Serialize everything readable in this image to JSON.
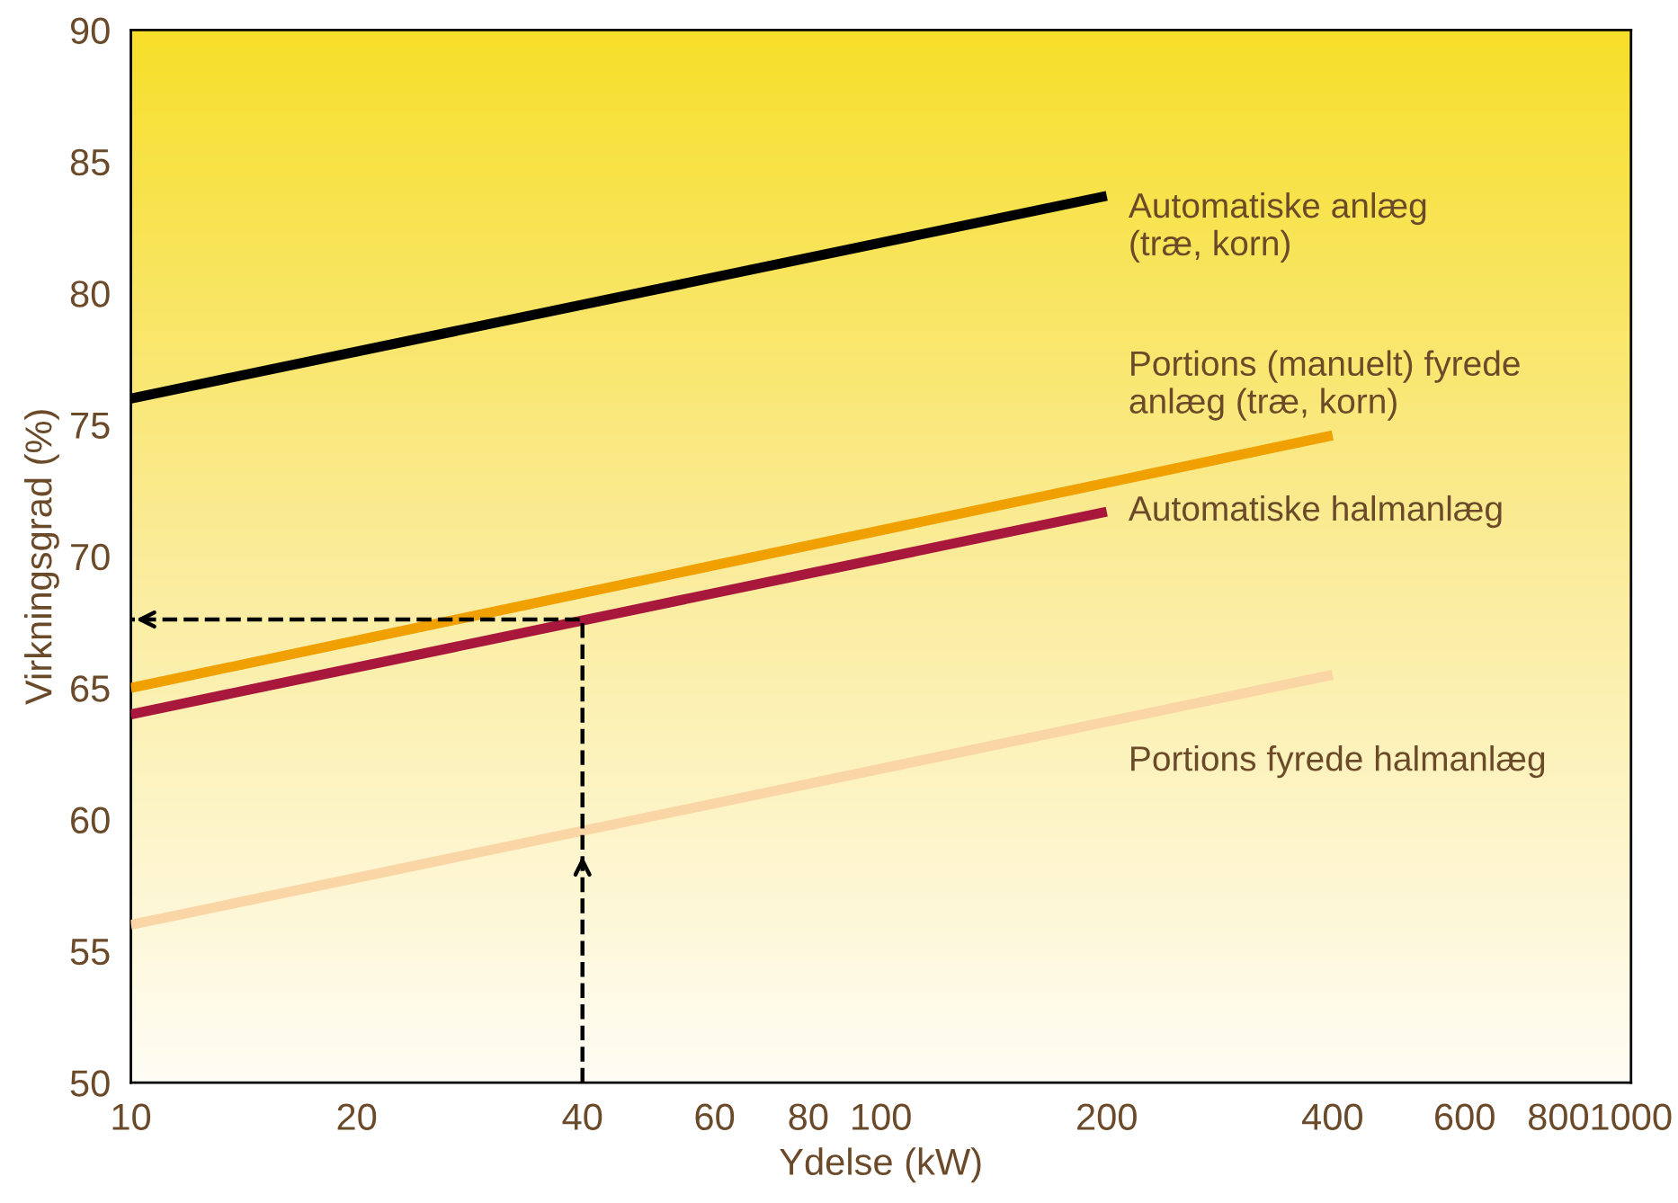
{
  "chart_data": {
    "type": "line",
    "xlabel": "Ydelse (kW)",
    "ylabel": "Virkningsgrad (%)",
    "log": "x",
    "xlim": [
      10,
      1000
    ],
    "xticks": [
      10,
      20,
      40,
      60,
      80,
      100,
      200,
      400,
      600,
      800,
      1000
    ],
    "ylim": [
      50,
      90
    ],
    "yticks": [
      50,
      55,
      60,
      65,
      70,
      75,
      80,
      85,
      90
    ],
    "grid": false,
    "line_style": "solid",
    "marker": "none",
    "series": [
      {
        "name": "Automatiske anlæg\n(træ, korn)",
        "color": "#000000",
        "x": [
          10,
          200
        ],
        "values": [
          76,
          83.7
        ]
      },
      {
        "name": "Portions (manuelt) fyrede\nanlæg (træ, korn)",
        "color": "#f0a000",
        "x": [
          10,
          400
        ],
        "values": [
          65,
          74.6
        ]
      },
      {
        "name": "Automatiske halmanlæg",
        "color": "#a8173c",
        "x": [
          10,
          200
        ],
        "values": [
          64,
          71.7
        ]
      },
      {
        "name": "Portions fyrede halmanlæg",
        "color": "#fad5a5",
        "x": [
          10,
          400
        ],
        "values": [
          56,
          65.5
        ]
      },
      {
        "color": "#000000",
        "line_style": "dashed",
        "x": [
          40,
          40,
          10
        ],
        "values": [
          50,
          67.6,
          67.6
        ]
      }
    ]
  }
}
